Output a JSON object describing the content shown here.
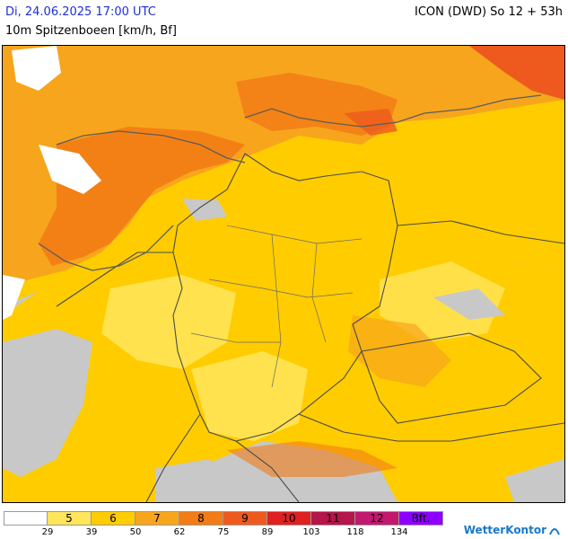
{
  "header": {
    "date": "Di, 24.06.2025 17:00 UTC",
    "model": "ICON (DWD) So 12 + 53h",
    "parameter": "10m Spitzenboeen [km/h, Bf]"
  },
  "legend": {
    "bins": [
      {
        "label": "",
        "color": "#ffffff"
      },
      {
        "label": "5",
        "color": "#ffe55a"
      },
      {
        "label": "6",
        "color": "#ffcc00"
      },
      {
        "label": "7",
        "color": "#f7a51d"
      },
      {
        "label": "8",
        "color": "#f27c15"
      },
      {
        "label": "9",
        "color": "#ee5a1e"
      },
      {
        "label": "10",
        "color": "#e02020"
      },
      {
        "label": "11",
        "color": "#b5154a"
      },
      {
        "label": "12",
        "color": "#c2186e"
      },
      {
        "label": "Bft.",
        "color": "#8d00ff"
      }
    ],
    "ticks": [
      "29",
      "39",
      "50",
      "62",
      "75",
      "89",
      "103",
      "118",
      "134"
    ]
  },
  "logo": {
    "text": "WetterKontor"
  },
  "map_colors": {
    "no_data": "#c8c8c8",
    "sea": "#f7a51d",
    "coast_strong": "#f27c15",
    "inland": "#ffcc00",
    "light": "#ffe55a",
    "borders": "#4a4a4a"
  }
}
